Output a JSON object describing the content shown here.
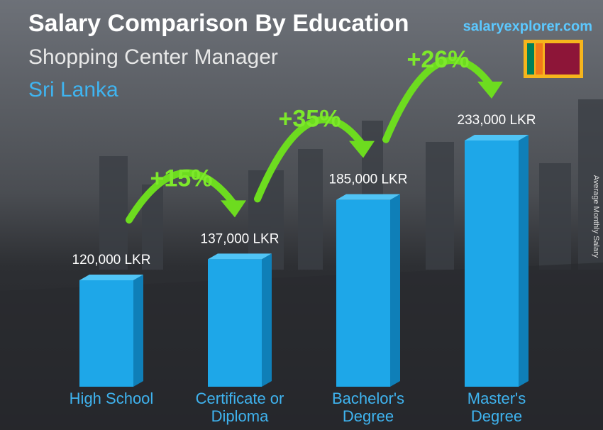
{
  "chart_data": {
    "type": "bar",
    "title": "Salary Comparison By Education",
    "subtitle": "Shopping Center Manager",
    "location": "Sri Lanka",
    "brand": "salaryexplorer.com",
    "y_axis_label": "Average Monthly Salary",
    "categories": [
      [
        "High School"
      ],
      [
        "Certificate or",
        "Diploma"
      ],
      [
        "Bachelor's",
        "Degree"
      ],
      [
        "Master's",
        "Degree"
      ]
    ],
    "values": [
      120000,
      137000,
      185000,
      233000
    ],
    "value_labels": [
      "120,000 LKR",
      "137,000 LKR",
      "185,000 LKR",
      "233,000 LKR"
    ],
    "increases": [
      "+15%",
      "+35%",
      "+26%"
    ],
    "color": "#1ea7e8"
  }
}
